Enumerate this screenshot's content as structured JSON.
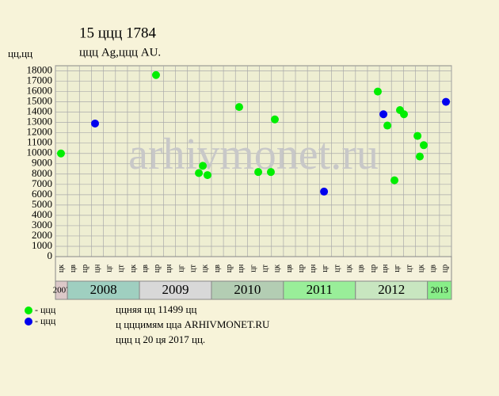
{
  "chart_data": {
    "type": "scatter",
    "title": "15 ццц 1784",
    "subtitle": "ццц Ag,ццц AU.",
    "y_label": "цц,цц",
    "watermark": "arhivmonet.ru",
    "categories": [
      "цк",
      "цв",
      "цр",
      "цн",
      "цг",
      "цт",
      "цк",
      "цв",
      "цр",
      "цн",
      "цг",
      "цт",
      "цк",
      "цв",
      "цр",
      "цн",
      "цг",
      "цт",
      "цк",
      "цв",
      "цр",
      "цн",
      "цг",
      "цт",
      "цк",
      "цв",
      "цр",
      "цн",
      "цг",
      "цт",
      "цк",
      "цв",
      "цр"
    ],
    "years": [
      {
        "label": "2007",
        "span": 1,
        "color": "#dcc8c8"
      },
      {
        "label": "2008",
        "span": 6,
        "color": "#9fcfc0"
      },
      {
        "label": "2009",
        "span": 6,
        "color": "#d8d8d8"
      },
      {
        "label": "2010",
        "span": 6,
        "color": "#b3cdb3"
      },
      {
        "label": "2011",
        "span": 6,
        "color": "#99ee99"
      },
      {
        "label": "2012",
        "span": 6,
        "color": "#c8e6c0"
      },
      {
        "label": "2013",
        "span": 2,
        "color": "#88ee88"
      }
    ],
    "xlim": [
      0,
      33
    ],
    "ylim": [
      0,
      18500
    ],
    "yticks": [
      0,
      1000,
      2000,
      3000,
      4000,
      5000,
      6000,
      7000,
      8000,
      9000,
      10000,
      11000,
      12000,
      13000,
      14000,
      15000,
      16000,
      17000,
      18000
    ],
    "grid": true,
    "series": [
      {
        "name": "- ццц",
        "color": "#00ee00",
        "x": [
          0.46,
          8.38,
          11.95,
          12.28,
          12.67,
          15.31,
          16.9,
          17.95,
          18.28,
          26.86,
          27.66,
          28.25,
          28.71,
          29.04,
          30.17,
          30.36,
          30.69
        ],
        "values": [
          10000,
          17600,
          8100,
          8800,
          7900,
          14500,
          8200,
          8200,
          13300,
          16000,
          12700,
          7400,
          14200,
          13800,
          11700,
          9700,
          10800
        ]
      },
      {
        "name": "- ццц",
        "color": "#0000ee",
        "x": [
          3.3,
          22.38,
          27.33,
          32.54
        ],
        "values": [
          12900,
          6300,
          13800,
          15000
        ]
      }
    ],
    "notes": [
      "ццняя цц 11499 цц",
      "ц цццимям цца ARHIVMONET.RU",
      "ццц ц 20 ця 2017 цц."
    ]
  }
}
